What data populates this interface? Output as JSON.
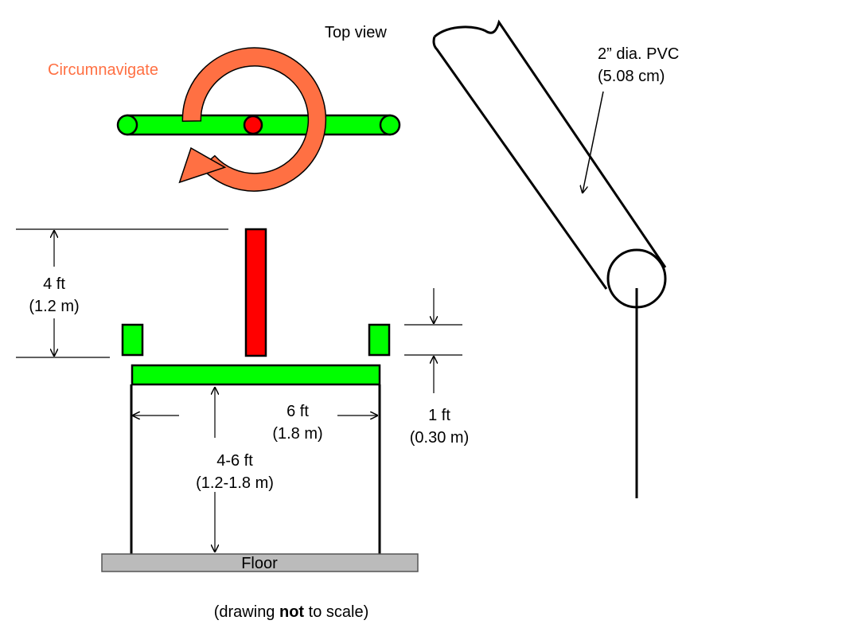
{
  "labels": {
    "top_view": "Top view",
    "circumnavigate": "Circumnavigate",
    "pvc_line1": "2” dia. PVC",
    "pvc_line2": "(5.08 cm)",
    "height_ft": "4 ft",
    "height_m": "(1.2 m)",
    "width_ft": "6 ft",
    "width_m": "(1.8 m)",
    "leg_ft": "4-6 ft",
    "leg_m": "(1.2-1.8 m)",
    "gap_ft": "1 ft",
    "gap_m": "(0.30 m)",
    "floor": "Floor",
    "note_prefix": "(drawing ",
    "note_bold": "not",
    "note_suffix": " to scale)"
  },
  "colors": {
    "green": "#00ff00",
    "red": "#ff0000",
    "orange": "#ff7043",
    "floor": "#bbbbbb",
    "stroke": "#000000"
  }
}
